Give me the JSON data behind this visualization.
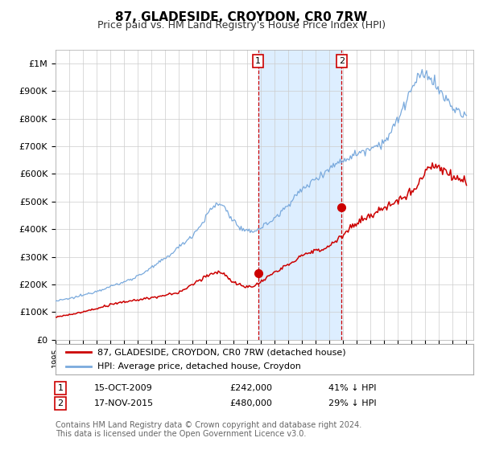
{
  "title": "87, GLADESIDE, CROYDON, CR0 7RW",
  "subtitle": "Price paid vs. HM Land Registry's House Price Index (HPI)",
  "title_fontsize": 11,
  "subtitle_fontsize": 9,
  "ylabel_ticks": [
    "£0",
    "£100K",
    "£200K",
    "£300K",
    "£400K",
    "£500K",
    "£600K",
    "£700K",
    "£800K",
    "£900K",
    "£1M"
  ],
  "ytick_values": [
    0,
    100000,
    200000,
    300000,
    400000,
    500000,
    600000,
    700000,
    800000,
    900000,
    1000000
  ],
  "ylim": [
    0,
    1050000
  ],
  "xlim_start": 1995.0,
  "xlim_end": 2025.5,
  "sale1_date": 2009.79,
  "sale1_price": 242000,
  "sale1_label": "1",
  "sale2_date": 2015.88,
  "sale2_price": 480000,
  "sale2_label": "2",
  "shade_start": 2009.79,
  "shade_end": 2015.88,
  "hpi_color": "#7aaadd",
  "price_color": "#cc0000",
  "shade_color": "#ddeeff",
  "grid_color": "#cccccc",
  "background_color": "#ffffff",
  "legend_line1": "87, GLADESIDE, CROYDON, CR0 7RW (detached house)",
  "legend_line2": "HPI: Average price, detached house, Croydon",
  "table_row1_num": "1",
  "table_row1_date": "15-OCT-2009",
  "table_row1_price": "£242,000",
  "table_row1_hpi": "41% ↓ HPI",
  "table_row2_num": "2",
  "table_row2_date": "17-NOV-2015",
  "table_row2_price": "£480,000",
  "table_row2_hpi": "29% ↓ HPI",
  "footnote": "Contains HM Land Registry data © Crown copyright and database right 2024.\nThis data is licensed under the Open Government Licence v3.0.",
  "footnote_fontsize": 7
}
